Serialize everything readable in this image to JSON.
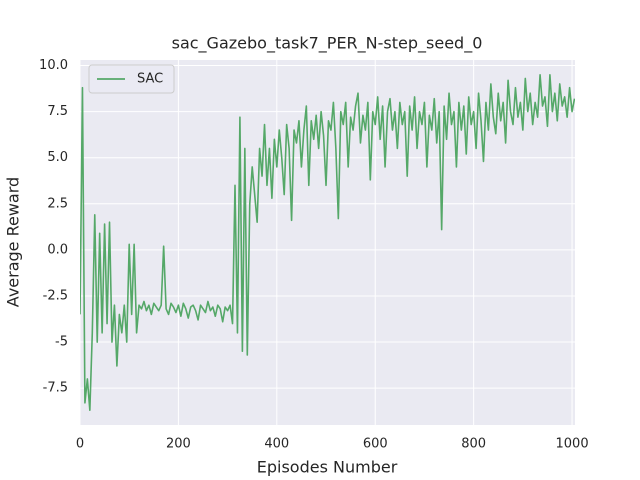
{
  "chart_data": {
    "type": "line",
    "title": "sac_Gazebo_task7_PER_N-step_seed_0",
    "xlabel": "Episodes Number",
    "ylabel": "Average Reward",
    "x": [
      0,
      5,
      10,
      15,
      20,
      25,
      30,
      35,
      40,
      45,
      50,
      55,
      60,
      65,
      70,
      75,
      80,
      85,
      90,
      95,
      100,
      105,
      110,
      115,
      120,
      125,
      130,
      135,
      140,
      145,
      150,
      155,
      160,
      165,
      170,
      175,
      180,
      185,
      190,
      195,
      200,
      205,
      210,
      215,
      220,
      225,
      230,
      235,
      240,
      245,
      250,
      255,
      260,
      265,
      270,
      275,
      280,
      285,
      290,
      295,
      300,
      305,
      310,
      315,
      320,
      325,
      330,
      335,
      340,
      345,
      350,
      355,
      360,
      365,
      370,
      375,
      380,
      385,
      390,
      395,
      400,
      405,
      410,
      415,
      420,
      425,
      430,
      435,
      440,
      445,
      450,
      455,
      460,
      465,
      470,
      475,
      480,
      485,
      490,
      495,
      500,
      505,
      510,
      515,
      520,
      525,
      530,
      535,
      540,
      545,
      550,
      555,
      560,
      565,
      570,
      575,
      580,
      585,
      590,
      595,
      600,
      605,
      610,
      615,
      620,
      625,
      630,
      635,
      640,
      645,
      650,
      655,
      660,
      665,
      670,
      675,
      680,
      685,
      690,
      695,
      700,
      705,
      710,
      715,
      720,
      725,
      730,
      735,
      740,
      745,
      750,
      755,
      760,
      765,
      770,
      775,
      780,
      785,
      790,
      795,
      800,
      805,
      810,
      815,
      820,
      825,
      830,
      835,
      840,
      845,
      850,
      855,
      860,
      865,
      870,
      875,
      880,
      885,
      890,
      895,
      900,
      905,
      910,
      915,
      920,
      925,
      930,
      935,
      940,
      945,
      950,
      955,
      960,
      965,
      970,
      975,
      980,
      985,
      990,
      995,
      1000,
      1005
    ],
    "series": [
      {
        "name": "SAC",
        "color": "#55a868",
        "values": [
          -3.5,
          8.8,
          -8.3,
          -7,
          -8.7,
          -4.5,
          1.9,
          -5,
          0.9,
          -4.5,
          1.4,
          -4,
          1.5,
          -5,
          -3,
          -6.3,
          -3.5,
          -4.5,
          -3,
          -5,
          0.3,
          -3.5,
          0.3,
          -4.5,
          -3,
          -3.2,
          -2.8,
          -3.3,
          -3,
          -3.5,
          -2.9,
          -3.1,
          -3.3,
          -3,
          0.2,
          -3.2,
          -3.5,
          -2.9,
          -3.1,
          -3.4,
          -3,
          -3.6,
          -2.9,
          -3.2,
          -3.7,
          -3.1,
          -3,
          -3.3,
          -3.8,
          -3,
          -3.2,
          -3.4,
          -2.8,
          -3.3,
          -3.1,
          -3.6,
          -3,
          -3.2,
          -3.9,
          -3.1,
          -3.3,
          -3,
          -4,
          3.5,
          -4.5,
          7.2,
          -5.5,
          5.5,
          -5.7,
          2.5,
          4.5,
          3,
          1.5,
          5.5,
          4,
          6.8,
          3.5,
          5.5,
          2.8,
          6,
          4.5,
          6.5,
          5,
          3,
          6.8,
          5.5,
          1.6,
          6.5,
          5.8,
          7,
          4.5,
          6.5,
          7.8,
          3.5,
          7,
          6,
          7.3,
          5.5,
          7.5,
          6.2,
          3.5,
          7,
          6.5,
          8,
          5.5,
          1.7,
          7.5,
          6.8,
          8,
          4.5,
          7.2,
          6.5,
          7.8,
          8.5,
          5.8,
          7.3,
          6.5,
          8,
          3.8,
          7.5,
          6.8,
          8.3,
          6,
          7.8,
          4.5,
          7.5,
          8.2,
          6.5,
          7.5,
          5.5,
          8,
          6.8,
          7.5,
          4,
          7.8,
          6.5,
          8.3,
          5.5,
          7.5,
          6.8,
          8,
          4.5,
          7.3,
          6.5,
          8.2,
          5.8,
          7.5,
          1.1,
          7.8,
          6,
          8.5,
          6.8,
          7.5,
          4.5,
          8,
          6.5,
          7.8,
          5.2,
          8.3,
          6.8,
          7.5,
          5.5,
          8.5,
          7,
          4.8,
          8,
          6.5,
          9,
          7.2,
          6.3,
          8.5,
          7,
          8,
          5.8,
          9.2,
          7.5,
          6.8,
          8.8,
          7.2,
          8,
          6.5,
          9.3,
          7.5,
          8.5,
          6.8,
          8,
          7.2,
          9.5,
          7.8,
          8.3,
          6.7,
          9.5,
          7.5,
          8.5,
          7,
          9,
          7.8,
          8.3,
          7.2,
          8.8,
          7.5,
          8.2
        ]
      }
    ],
    "xlim": [
      0,
      1006
    ],
    "ylim": [
      -9.5,
      10.3
    ],
    "xticks": [
      0,
      200,
      400,
      600,
      800,
      1000
    ],
    "yticks": [
      -7.5,
      -5,
      -2.5,
      {
        "value": 0,
        "label": "0.0"
      },
      2.5,
      {
        "value": 5,
        "label": "5.0"
      },
      7.5,
      {
        "value": 10,
        "label": "10.0"
      }
    ],
    "grid": true,
    "legend": "upper left"
  }
}
